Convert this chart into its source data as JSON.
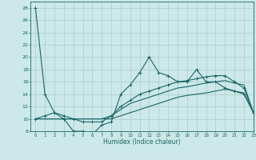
{
  "xlabel": "Humidex (Indice chaleur)",
  "bg_color": "#cce8e8",
  "grid_color": "#aacccc",
  "line_color": "#1a6666",
  "xlim": [
    -0.5,
    23
  ],
  "ylim": [
    8,
    29
  ],
  "yticks": [
    8,
    10,
    12,
    14,
    16,
    18,
    20,
    22,
    24,
    26,
    28
  ],
  "xticks": [
    0,
    1,
    2,
    3,
    4,
    5,
    6,
    7,
    8,
    9,
    10,
    11,
    12,
    13,
    14,
    15,
    16,
    17,
    18,
    19,
    20,
    21,
    22,
    23
  ],
  "series1_x": [
    0,
    1,
    2,
    3,
    4,
    5,
    6,
    7,
    8,
    9,
    10,
    11,
    12,
    13,
    14,
    15,
    16,
    17,
    18,
    19,
    20,
    21,
    22,
    23
  ],
  "series1_y": [
    28,
    14,
    11,
    10,
    8,
    8,
    7.5,
    9,
    9.5,
    14,
    15.5,
    17.5,
    20,
    17.5,
    17,
    16,
    16,
    18,
    16,
    16,
    15,
    14.5,
    14,
    11
  ],
  "series2_x": [
    0,
    1,
    2,
    3,
    4,
    5,
    6,
    7,
    8,
    9,
    10,
    11,
    12,
    13,
    14,
    15,
    16,
    17,
    18,
    19,
    20,
    21,
    22,
    23
  ],
  "series2_y": [
    10,
    10,
    10,
    10,
    10,
    10,
    10,
    10,
    10,
    10.5,
    11,
    11.5,
    12,
    12.5,
    13,
    13.5,
    13.8,
    14,
    14.2,
    14.5,
    14.8,
    14.5,
    14.2,
    11
  ],
  "series3_x": [
    0,
    1,
    2,
    3,
    4,
    5,
    6,
    7,
    8,
    9,
    10,
    11,
    12,
    13,
    14,
    15,
    16,
    17,
    18,
    19,
    20,
    21,
    22,
    23
  ],
  "series3_y": [
    10,
    10,
    10,
    10,
    10,
    10,
    10,
    10,
    10.5,
    11.5,
    12.5,
    13,
    13.5,
    14,
    14.5,
    15,
    15.2,
    15.5,
    15.8,
    16,
    16.2,
    15.8,
    15.5,
    11
  ],
  "series4_x": [
    0,
    1,
    2,
    3,
    4,
    5,
    6,
    7,
    8,
    9,
    10,
    11,
    12,
    13,
    14,
    15,
    16,
    17,
    18,
    19,
    20,
    21,
    22,
    23
  ],
  "series4_y": [
    10,
    10.5,
    11,
    10.5,
    10,
    9.5,
    9.5,
    9.5,
    10.5,
    12,
    13,
    14,
    14.5,
    15,
    15.5,
    16,
    16.2,
    16.5,
    16.8,
    17,
    17,
    16,
    15,
    11
  ]
}
